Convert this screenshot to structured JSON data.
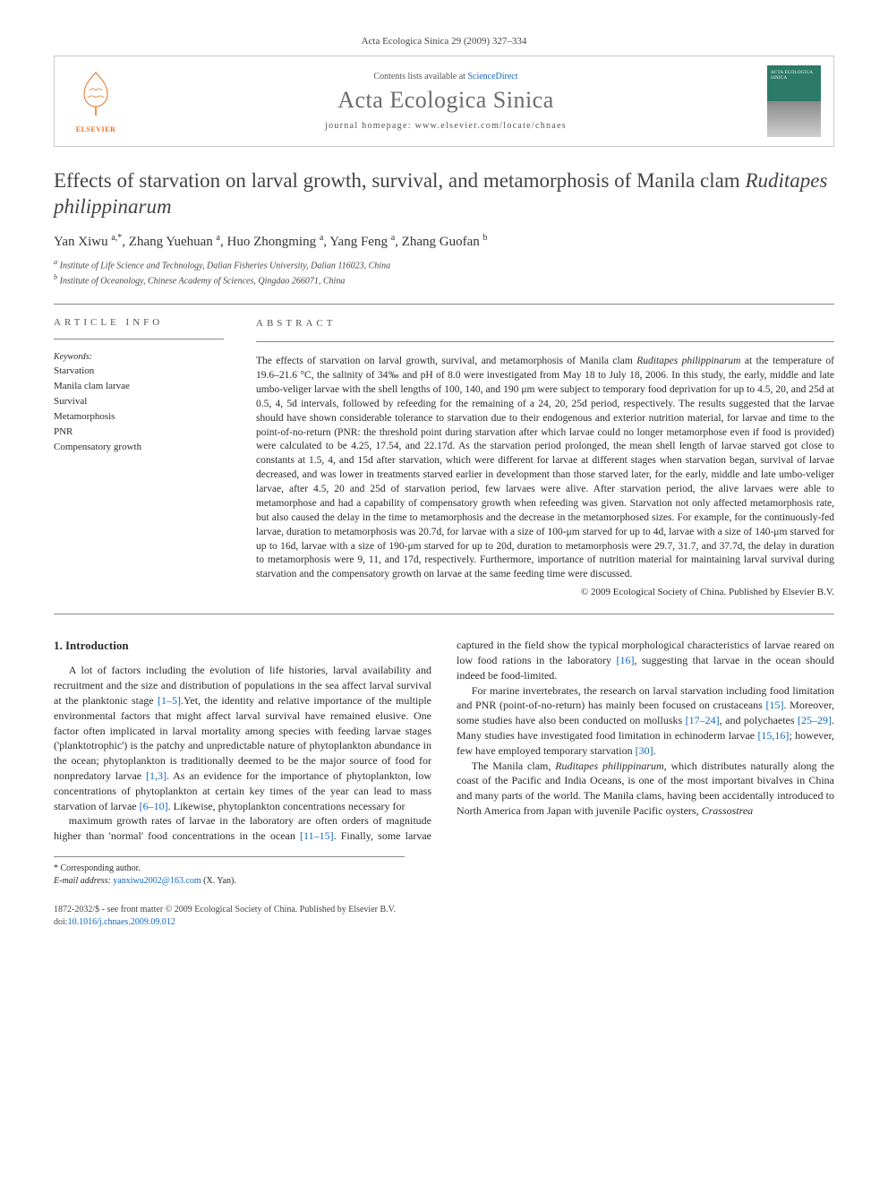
{
  "running_head": "Acta Ecologica Sinica 29 (2009) 327–334",
  "masthead": {
    "publisher": "ELSEVIER",
    "contents_prefix": "Contents lists available at ",
    "contents_link": "ScienceDirect",
    "journal_name": "Acta Ecologica Sinica",
    "homepage_prefix": "journal homepage: ",
    "homepage_url": "www.elsevier.com/locate/chnaes",
    "cover_title": "ACTA ECOLOGICA SINICA"
  },
  "title_main": "Effects of starvation on larval growth, survival, and metamorphosis of Manila clam ",
  "title_sci": "Ruditapes philippinarum",
  "authors_html": "Yan Xiwu <sup>a,*</sup>, Zhang Yuehuan <sup>a</sup>, Huo Zhongming <sup>a</sup>, Yang Feng <sup>a</sup>, Zhang Guofan <sup>b</sup>",
  "affiliations": {
    "a": "Institute of Life Science and Technology, Dalian Fisheries University, Dalian 116023, China",
    "b": "Institute of Oceanology, Chinese Academy of Sciences, Qingdao 266071, China"
  },
  "article_info_head": "ARTICLE INFO",
  "abstract_head": "ABSTRACT",
  "keywords_head": "Keywords:",
  "keywords": [
    "Starvation",
    "Manila clam larvae",
    "Survival",
    "Metamorphosis",
    "PNR",
    "Compensatory growth"
  ],
  "abstract_text": "The effects of starvation on larval growth, survival, and metamorphosis of Manila clam Ruditapes philippinarum at the temperature of 19.6–21.6 °C, the salinity of 34‰ and pH of 8.0 were investigated from May 18 to July 18, 2006. In this study, the early, middle and late umbo-veliger larvae with the shell lengths of 100, 140, and 190 μm were subject to temporary food deprivation for up to 4.5, 20, and 25d at 0.5, 4, 5d intervals, followed by refeeding for the remaining of a 24, 20, 25d period, respectively. The results suggested that the larvae should have shown considerable tolerance to starvation due to their endogenous and exterior nutrition material, for larvae and time to the point-of-no-return (PNR: the threshold point during starvation after which larvae could no longer metamorphose even if food is provided) were calculated to be 4.25, 17.54, and 22.17d. As the starvation period prolonged, the mean shell length of larvae starved got close to constants at 1.5, 4, and 15d after starvation, which were different for larvae at different stages when starvation began, survival of larvae decreased, and was lower in treatments starved earlier in development than those starved later, for the early, middle and late umbo-veliger larvae, after 4.5, 20 and 25d of starvation period, few larvaes were alive. After starvation period, the alive larvaes were able to metamorphose and had a capability of compensatory growth when refeeding was given. Starvation not only affected metamorphosis rate, but also caused the delay in the time to metamorphosis and the decrease in the metamorphosed sizes. For example, for the continuously-fed larvae, duration to metamorphosis was 20.7d, for larvae with a size of 100-μm starved for up to 4d, larvae with a size of 140-μm starved for up to 16d, larvae with a size of 190-μm starved for up to 20d, duration to metamorphosis were 29.7, 31.7, and 37.7d, the delay in duration to metamorphosis were 9, 11, and 17d, respectively. Furthermore, importance of nutrition material for maintaining larval survival during starvation and the compensatory growth on larvae at the same feeding time were discussed.",
  "copyright": "© 2009 Ecological Society of China. Published by Elsevier B.V.",
  "intro_head": "1. Introduction",
  "intro_p1": "A lot of factors including the evolution of life histories, larval availability and recruitment and the size and distribution of populations in the sea affect larval survival at the planktonic stage [1–5].Yet, the identity and relative importance of the multiple environmental factors that might affect larval survival have remained elusive. One factor often implicated in larval mortality among species with feeding larvae stages ('planktotrophic') is the patchy and unpredictable nature of phytoplankton abundance in the ocean; phytoplankton is traditionally deemed to be the major source of food for nonpredatory larvae [1,3]. As an evidence for the importance of phytoplankton, low concentrations of phytoplankton at certain key times of the year can lead to mass starvation of larvae [6–10]. Likewise, phytoplankton concentrations necessary for",
  "intro_p2": "maximum growth rates of larvae in the laboratory are often orders of magnitude higher than 'normal' food concentrations in the ocean [11–15]. Finally, some larvae captured in the field show the typical morphological characteristics of larvae reared on low food rations in the laboratory [16], suggesting that larvae in the ocean should indeed be food-limited.",
  "intro_p3": "For marine invertebrates, the research on larval starvation including food limitation and PNR (point-of-no-return) has mainly been focused on crustaceans [15]. Moreover, some studies have also been conducted on mollusks [17–24], and polychaetes [25–29]. Many studies have investigated food limitation in echinoderm larvae [15,16]; however, few have employed temporary starvation [30].",
  "intro_p4": "The Manila clam, Ruditapes philippinarum, which distributes naturally along the coast of the Pacific and India Oceans, is one of the most important bivalves in China and many parts of the world. The Manila clams, having been accidentally introduced to North America from Japan with juvenile Pacific oysters, Crassostrea",
  "corr_label": "* Corresponding author.",
  "email_label": "E-mail address: ",
  "email": "yanxiwu2002@163.com",
  "email_suffix": " (X. Yan).",
  "footer_line1": "1872-2032/$ - see front matter © 2009 Ecological Society of China. Published by Elsevier B.V.",
  "footer_doi_label": "doi:",
  "footer_doi": "10.1016/j.chnaes.2009.09.012",
  "colors": {
    "link": "#1068bf",
    "elsevier_orange": "#e9711c",
    "journal_grey": "#6b6b6b",
    "cover_green": "#2c7a68",
    "text": "#2a2a2a",
    "rule": "#888888"
  }
}
